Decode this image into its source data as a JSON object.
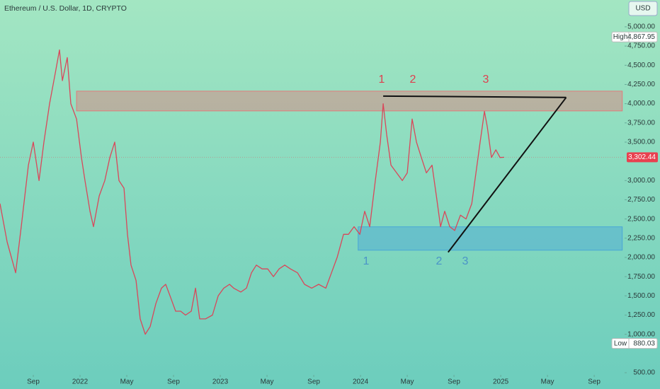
{
  "chart_data": {
    "type": "line",
    "title": "Ethereum / U.S. Dollar, 1D, CRYPTO",
    "currency": "USD",
    "x": [
      -0.85,
      -0.24,
      0.49,
      0.97,
      1.58,
      2.0,
      2.49,
      2.91,
      3.39,
      3.88,
      4.24,
      4.49,
      4.91,
      5.21,
      5.7,
      6.12,
      6.42,
      6.85,
      7.15,
      7.64,
      8.12,
      8.55,
      8.97,
      9.33,
      9.76,
      10.06,
      10.36,
      10.79,
      11.15,
      11.58,
      12.0,
      12.49,
      12.97,
      13.33,
      13.7,
      14.18,
      14.61,
      15.03,
      15.52,
      15.88,
      16.24,
      16.73,
      17.33,
      17.82,
      18.3,
      18.79,
      19.15,
      19.76,
      20.24,
      20.67,
      21.09,
      21.58,
      22.06,
      22.55,
      23.03,
      23.52,
      24.0,
      24.61,
      25.21,
      25.82,
      26.42,
      27.03,
      27.52,
      28.0,
      28.55,
      28.97,
      29.45,
      29.94,
      30.36,
      30.79,
      31.27,
      31.7,
      31.94,
      32.24,
      32.61,
      33.09,
      33.58,
      34.0,
      34.42,
      34.79,
      35.21,
      35.64,
      36.12,
      36.49,
      36.85,
      37.21,
      37.64,
      38.06,
      38.55,
      39.03,
      39.52,
      39.88,
      40.24,
      40.61,
      40.85,
      41.21,
      41.58,
      41.94,
      42.3
    ],
    "series": [
      {
        "color": "#d9475a",
        "values": [
          2700,
          2200,
          1800,
          2400,
          3200,
          3500,
          3000,
          3500,
          4000,
          4400,
          4700,
          4300,
          4600,
          4000,
          3800,
          3300,
          3000,
          2600,
          2400,
          2800,
          3000,
          3300,
          3500,
          3000,
          2900,
          2300,
          1900,
          1700,
          1200,
          1000,
          1100,
          1400,
          1600,
          1650,
          1500,
          1300,
          1300,
          1250,
          1300,
          1600,
          1200,
          1200,
          1250,
          1500,
          1600,
          1650,
          1600,
          1550,
          1600,
          1800,
          1900,
          1850,
          1850,
          1750,
          1850,
          1900,
          1850,
          1800,
          1650,
          1600,
          1650,
          1600,
          1800,
          2000,
          2300,
          2300,
          2400,
          2300,
          2600,
          2400,
          3000,
          3500,
          4000,
          3600,
          3200,
          3100,
          3000,
          3100,
          3800,
          3500,
          3300,
          3100,
          3200,
          2800,
          2400,
          2600,
          2400,
          2350,
          2550,
          2500,
          2700,
          3100,
          3500,
          3900,
          3700,
          3300,
          3400,
          3300,
          3302.44
        ]
      }
    ],
    "xlim": [
      -0.85,
      52.6
    ],
    "ylim": [
      472,
      5349
    ],
    "xticks": [
      {
        "value": 2,
        "label": "Sep"
      },
      {
        "value": 6,
        "label": "2022"
      },
      {
        "value": 10,
        "label": "May"
      },
      {
        "value": 14,
        "label": "Sep"
      },
      {
        "value": 18,
        "label": "2023"
      },
      {
        "value": 22,
        "label": "May"
      },
      {
        "value": 26,
        "label": "Sep"
      },
      {
        "value": 30,
        "label": "2024"
      },
      {
        "value": 34,
        "label": "May"
      },
      {
        "value": 38,
        "label": "Sep"
      },
      {
        "value": 42,
        "label": "2025"
      },
      {
        "value": 46,
        "label": "May"
      },
      {
        "value": 50,
        "label": "Sep"
      }
    ],
    "yticks": [
      {
        "value": 5000,
        "label": "5,000.00"
      },
      {
        "value": 4750,
        "label": "4,750.00"
      },
      {
        "value": 4500,
        "label": "4,500.00"
      },
      {
        "value": 4250,
        "label": "4,250.00"
      },
      {
        "value": 4000,
        "label": "4,000.00"
      },
      {
        "value": 3750,
        "label": "3,750.00"
      },
      {
        "value": 3500,
        "label": "3,500.00"
      },
      {
        "value": 3000,
        "label": "3,000.00"
      },
      {
        "value": 2750,
        "label": "2,750.00"
      },
      {
        "value": 2500,
        "label": "2,500.00"
      },
      {
        "value": 2250,
        "label": "2,250.00"
      },
      {
        "value": 2000,
        "label": "2,000.00"
      },
      {
        "value": 1750,
        "label": "1,750.00"
      },
      {
        "value": 1500,
        "label": "1,500.00"
      },
      {
        "value": 1250,
        "label": "1,250.00"
      },
      {
        "value": 1000,
        "label": "1,000.00"
      },
      {
        "value": 500,
        "label": "500.00"
      }
    ],
    "high": {
      "label": "High",
      "value": 4867.95,
      "value_label": "4,867.95"
    },
    "low": {
      "label": "Low",
      "value": 880.03,
      "value_label": "880.03"
    },
    "last_price": {
      "value": 3302.44,
      "value_label": "3,302.44",
      "color": "#e8404f"
    },
    "zones": [
      {
        "color": "#e27a7a",
        "x": [
          5.7,
          52.4
        ],
        "y": [
          3906,
          4163
        ]
      },
      {
        "color": "#4aa6d6",
        "x": [
          29.8,
          52.4
        ],
        "y": [
          2094,
          2398
        ]
      }
    ],
    "trendlines": [
      {
        "x": [
          31.94,
          47.6
        ],
        "y": [
          4099,
          4081
        ]
      },
      {
        "x": [
          37.5,
          47.6
        ],
        "y": [
          2067,
          4081
        ]
      }
    ],
    "annotations": [
      {
        "text": "1",
        "color": "#e03e4e"
      },
      {
        "text": "2",
        "color": "#e03e4e"
      },
      {
        "text": "3",
        "color": "#e03e4e"
      },
      {
        "text": "1",
        "color": "#4a94c8"
      },
      {
        "text": "2",
        "color": "#4a94c8"
      },
      {
        "text": "3",
        "color": "#4a94c8"
      }
    ]
  }
}
